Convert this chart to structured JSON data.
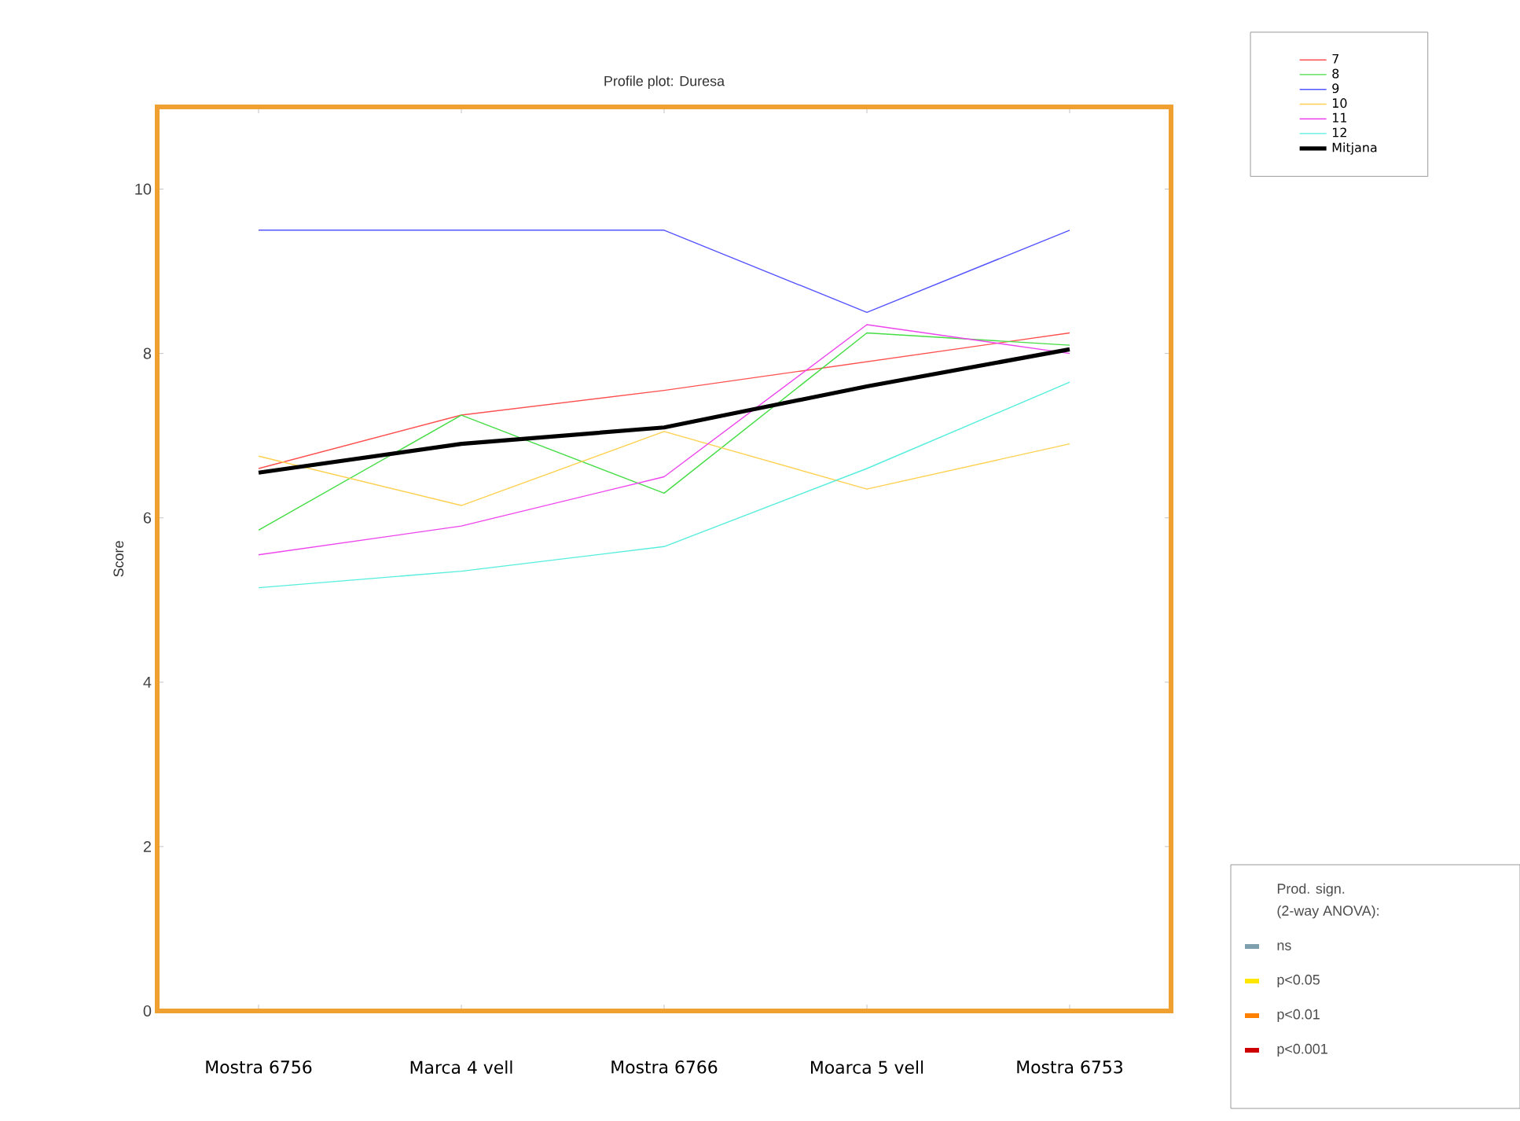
{
  "chart_data": {
    "type": "line",
    "title": "Profile plot: Duresa",
    "ylabel": "Score",
    "categories": [
      "Mostra 6756",
      "Marca 4  vell",
      "Mostra 6766",
      "Moarca 5 vell",
      "Mostra 6753"
    ],
    "series": [
      {
        "name": "7",
        "color": "#ff5050",
        "values": [
          6.6,
          7.25,
          7.55,
          null,
          8.25
        ]
      },
      {
        "name": "8",
        "color": "#44dd44",
        "values": [
          5.85,
          7.25,
          6.3,
          8.25,
          8.1
        ]
      },
      {
        "name": "9",
        "color": "#5555ff",
        "values": [
          9.5,
          9.5,
          9.5,
          8.5,
          9.5
        ]
      },
      {
        "name": "10",
        "color": "#ffd050",
        "values": [
          6.75,
          6.15,
          7.05,
          6.35,
          6.9
        ]
      },
      {
        "name": "11",
        "color": "#ee44ee",
        "values": [
          5.55,
          5.9,
          6.5,
          8.35,
          8.0
        ]
      },
      {
        "name": "12",
        "color": "#55eedd",
        "values": [
          5.15,
          5.35,
          5.65,
          6.6,
          7.65
        ]
      },
      {
        "name": "Mitjana",
        "color": "#000000",
        "values": [
          6.55,
          6.9,
          7.1,
          7.6,
          8.05
        ]
      }
    ],
    "ylim": [
      0,
      11
    ],
    "yticks": [
      0,
      2,
      4,
      6,
      8,
      10
    ],
    "legend": "top right",
    "marker": "none",
    "line_style": "solid",
    "annotations": [
      "Prod. sign.",
      "(2-way ANOVA):",
      "ns",
      "p<0.05",
      "p<0.01",
      "p<0.001"
    ]
  }
}
